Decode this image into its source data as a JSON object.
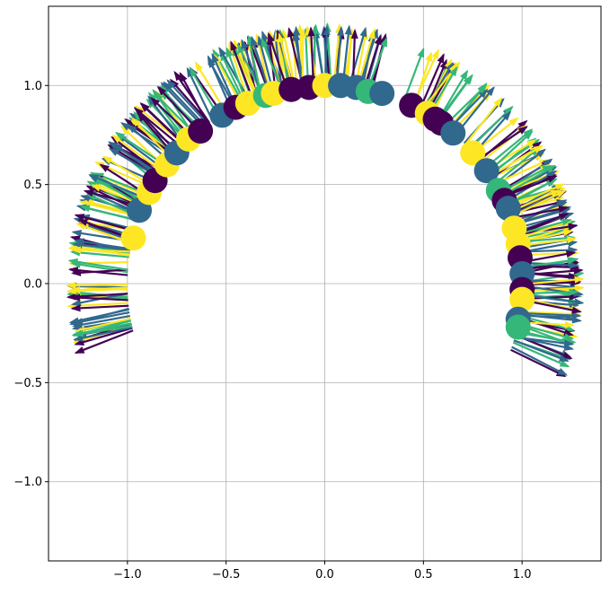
{
  "chart_data": {
    "type": "scatter",
    "title": "",
    "xlabel": "",
    "ylabel": "",
    "xlim": [
      -1.4,
      1.4
    ],
    "ylim": [
      -1.4,
      1.4
    ],
    "grid": true,
    "legend": "none",
    "x_ticks": [
      -1.0,
      -0.5,
      0.0,
      0.5,
      1.0
    ],
    "y_ticks": [
      -1.0,
      -0.5,
      0.0,
      0.5,
      1.0
    ],
    "x_tick_labels": [
      "−1.0",
      "−0.5",
      "0.0",
      "0.5",
      "1.0"
    ],
    "y_tick_labels": [
      "−1.0",
      "−0.5",
      "0.0",
      "0.5",
      "1.0"
    ],
    "colormap": [
      "#440154",
      "#31688e",
      "#35b779",
      "#fde725"
    ],
    "arc": {
      "radius": 1.0,
      "arrow_length": 0.3,
      "start_deg": 76,
      "end_deg": 195,
      "arrow_count": 220
    },
    "points": [
      {
        "x": -0.97,
        "y": 0.23,
        "c": 3
      },
      {
        "x": -0.94,
        "y": 0.37,
        "c": 1
      },
      {
        "x": -0.89,
        "y": 0.46,
        "c": 3
      },
      {
        "x": -0.86,
        "y": 0.52,
        "c": 0
      },
      {
        "x": -0.8,
        "y": 0.6,
        "c": 3
      },
      {
        "x": -0.75,
        "y": 0.66,
        "c": 1
      },
      {
        "x": -0.69,
        "y": 0.73,
        "c": 3
      },
      {
        "x": -0.63,
        "y": 0.77,
        "c": 0
      },
      {
        "x": -0.52,
        "y": 0.85,
        "c": 1
      },
      {
        "x": -0.45,
        "y": 0.89,
        "c": 0
      },
      {
        "x": -0.39,
        "y": 0.91,
        "c": 3
      },
      {
        "x": -0.3,
        "y": 0.95,
        "c": 2
      },
      {
        "x": -0.26,
        "y": 0.96,
        "c": 3
      },
      {
        "x": -0.17,
        "y": 0.98,
        "c": 0
      },
      {
        "x": -0.08,
        "y": 0.99,
        "c": 0
      },
      {
        "x": 0.0,
        "y": 1.0,
        "c": 3
      },
      {
        "x": 0.08,
        "y": 1.0,
        "c": 1
      },
      {
        "x": 0.16,
        "y": 0.99,
        "c": 1
      },
      {
        "x": 0.22,
        "y": 0.97,
        "c": 2
      },
      {
        "x": 0.29,
        "y": 0.96,
        "c": 1
      },
      {
        "x": 0.44,
        "y": 0.9,
        "c": 0
      },
      {
        "x": 0.52,
        "y": 0.86,
        "c": 3
      },
      {
        "x": 0.56,
        "y": 0.83,
        "c": 0
      },
      {
        "x": 0.59,
        "y": 0.81,
        "c": 0
      },
      {
        "x": 0.65,
        "y": 0.76,
        "c": 1
      },
      {
        "x": 0.75,
        "y": 0.66,
        "c": 3
      },
      {
        "x": 0.82,
        "y": 0.57,
        "c": 1
      },
      {
        "x": 0.88,
        "y": 0.47,
        "c": 2
      },
      {
        "x": 0.91,
        "y": 0.42,
        "c": 0
      },
      {
        "x": 0.93,
        "y": 0.38,
        "c": 1
      },
      {
        "x": 0.96,
        "y": 0.28,
        "c": 3
      },
      {
        "x": 0.98,
        "y": 0.2,
        "c": 3
      },
      {
        "x": 0.99,
        "y": 0.13,
        "c": 0
      },
      {
        "x": 1.0,
        "y": 0.05,
        "c": 1
      },
      {
        "x": 1.0,
        "y": -0.03,
        "c": 0
      },
      {
        "x": 1.0,
        "y": -0.08,
        "c": 3
      },
      {
        "x": 0.98,
        "y": -0.18,
        "c": 1
      },
      {
        "x": 0.98,
        "y": -0.22,
        "c": 2
      }
    ]
  }
}
